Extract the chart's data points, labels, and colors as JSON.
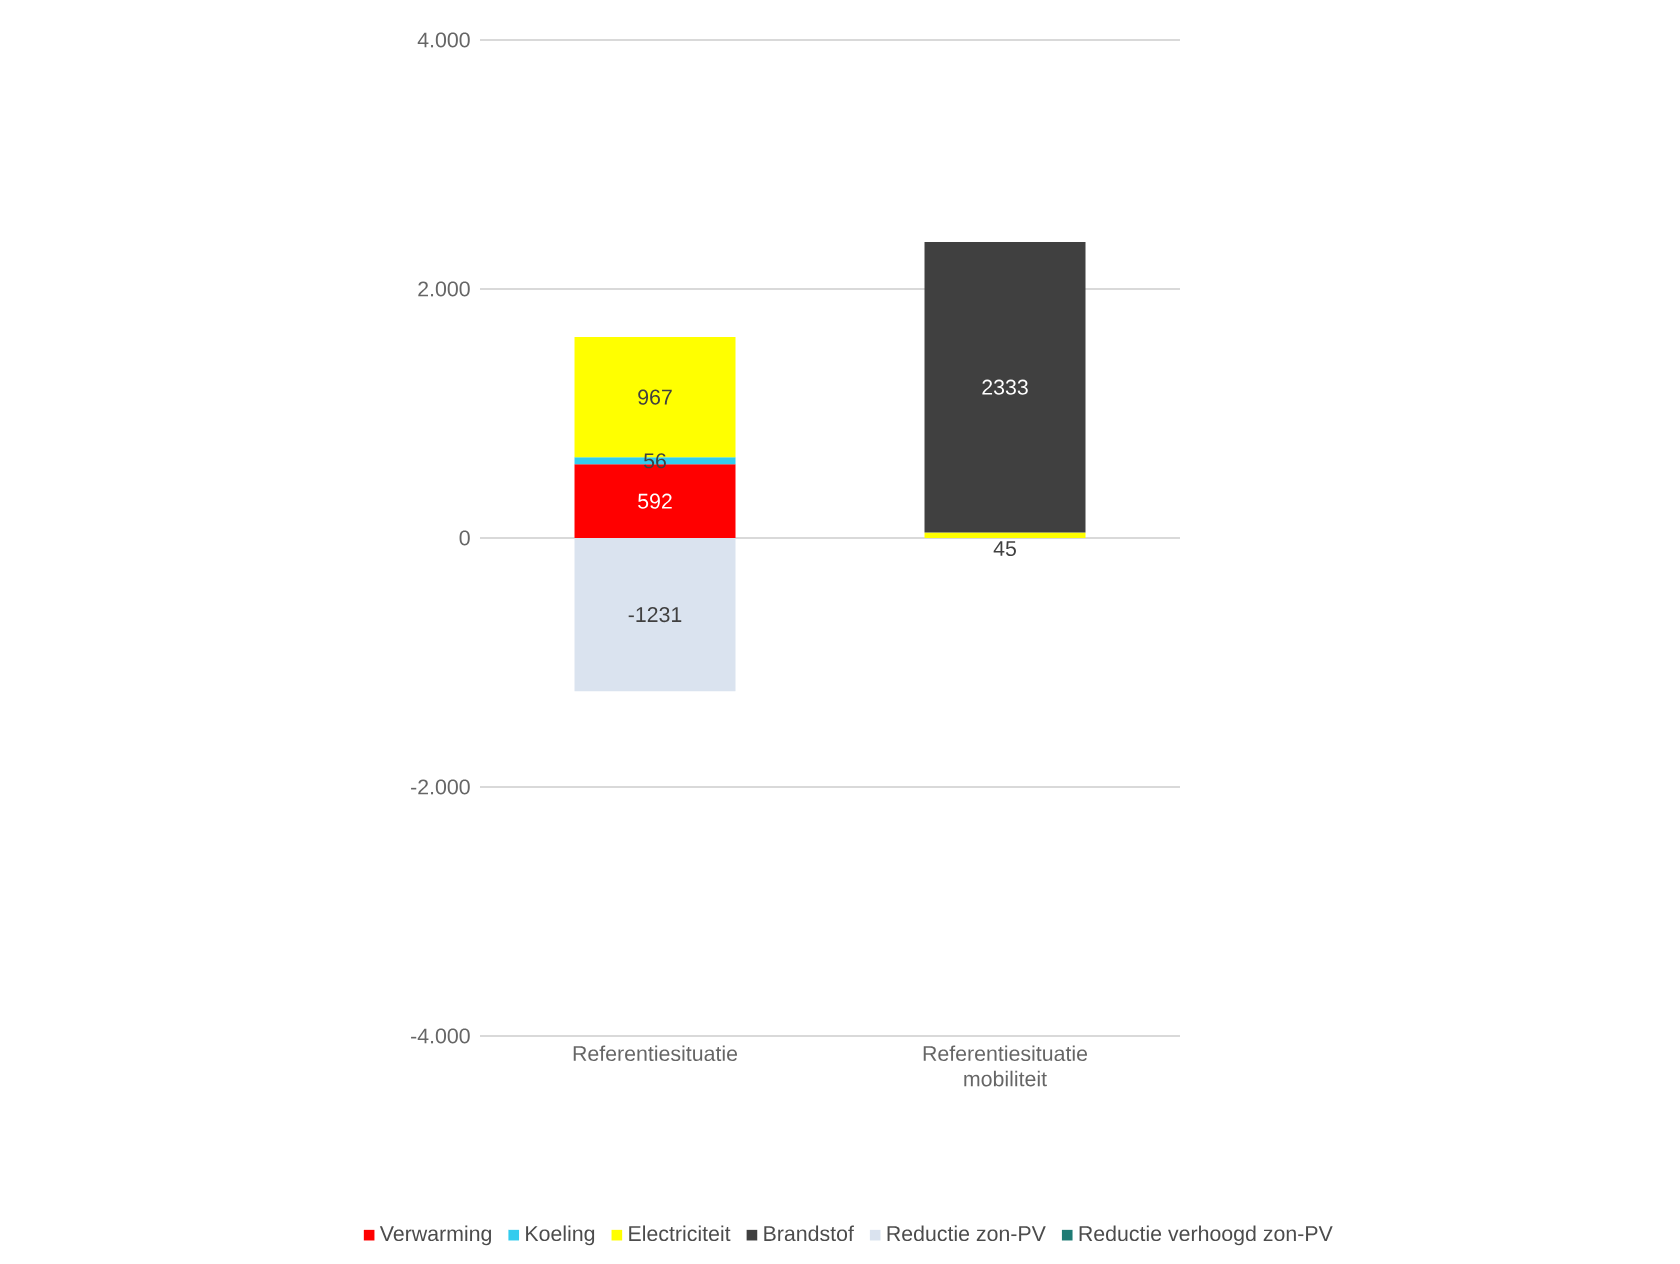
{
  "chart_data": {
    "type": "bar",
    "stacked": true,
    "categories": [
      "Referentiesituatie",
      "Referentiesituatie mobiliteit"
    ],
    "series": [
      {
        "name": "Verwarming",
        "color": "#ff0000",
        "values": [
          592,
          null
        ],
        "value_labels": [
          "592",
          null
        ]
      },
      {
        "name": "Koeling",
        "color": "#33ccee",
        "values": [
          56,
          null
        ],
        "value_labels": [
          "56",
          null
        ]
      },
      {
        "name": "Electriciteit",
        "color": "#ffff00",
        "values": [
          967,
          45
        ],
        "value_labels": [
          "967",
          "45"
        ]
      },
      {
        "name": "Brandstof",
        "color": "#404040",
        "values": [
          null,
          2333
        ],
        "value_labels": [
          null,
          "2333"
        ]
      },
      {
        "name": "Reductie zon-PV",
        "color": "#dae3ef",
        "values": [
          -1231,
          null
        ],
        "value_labels": [
          "-1231",
          null
        ]
      },
      {
        "name": "Reductie verhoogd zon-PV",
        "color": "#1e7b74",
        "values": [
          null,
          null
        ]
      }
    ],
    "ylim": [
      -4000,
      4000
    ],
    "yticks": [
      {
        "value": -4000,
        "label": "-4.000"
      },
      {
        "value": -2000,
        "label": "-2.000"
      },
      0,
      {
        "value": 2000,
        "label": "2.000"
      },
      {
        "value": 4000,
        "label": "4.000"
      }
    ],
    "grid": "y",
    "legend": "bottom"
  }
}
